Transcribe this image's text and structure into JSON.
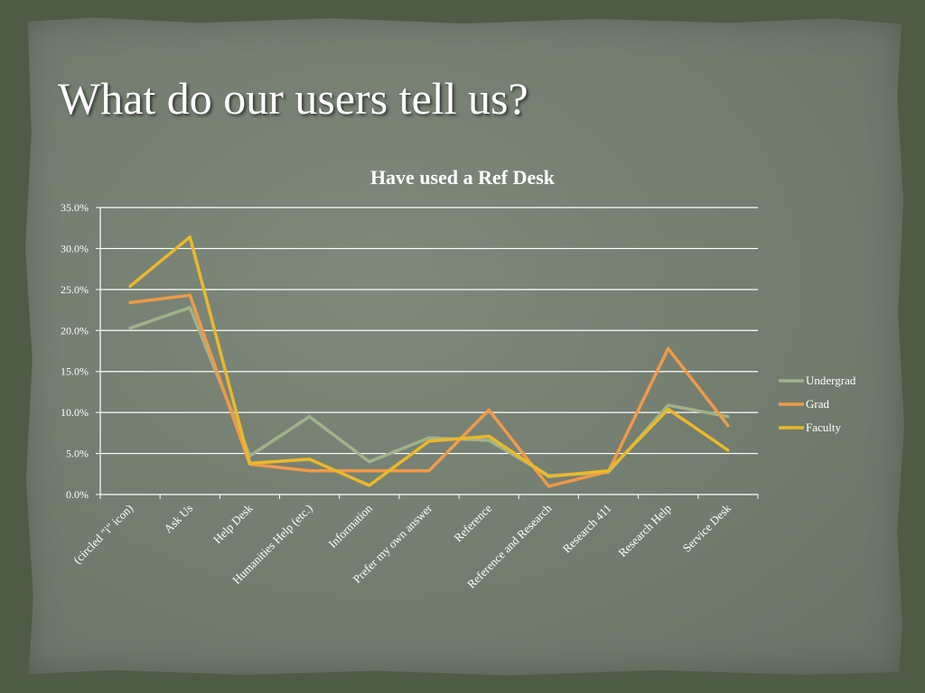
{
  "slide": {
    "title": "What do our users tell us?"
  },
  "colors": {
    "Undergrad": "#9fb38a",
    "Grad": "#f09a49",
    "Faculty": "#e9b92a",
    "grid": "#ffffff"
  },
  "chart_data": {
    "type": "line",
    "title": "Have used a Ref Desk",
    "xlabel": "",
    "ylabel": "",
    "ylim": [
      0,
      35
    ],
    "yticks": [
      "0.0%",
      "5.0%",
      "10.0%",
      "15.0%",
      "20.0%",
      "25.0%",
      "30.0%",
      "35.0%"
    ],
    "grid": true,
    "legend": "right",
    "categories": [
      "(circled \"i\" icon)",
      "Ask Us",
      "Help Desk",
      "Humanities Help (etc.)",
      "Information",
      "Prefer my own answer",
      "Reference",
      "Reference and Research",
      "Research 411",
      "Research Help",
      "Service Desk"
    ],
    "series": [
      {
        "name": "Undergrad",
        "values": [
          20.3,
          22.8,
          4.7,
          9.5,
          4.0,
          6.9,
          6.6,
          2.3,
          2.7,
          10.9,
          9.5
        ]
      },
      {
        "name": "Grad",
        "values": [
          23.4,
          24.3,
          3.7,
          2.9,
          2.9,
          2.9,
          10.3,
          1.0,
          2.8,
          17.8,
          8.4
        ]
      },
      {
        "name": "Faculty",
        "values": [
          25.4,
          31.4,
          3.8,
          4.3,
          1.1,
          6.5,
          7.1,
          2.2,
          2.9,
          10.4,
          5.4
        ]
      }
    ]
  }
}
